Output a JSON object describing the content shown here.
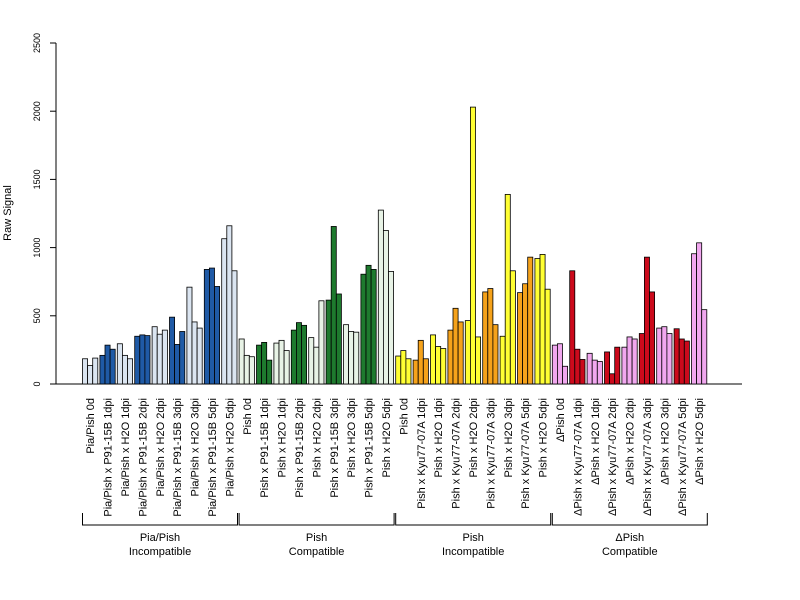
{
  "chart_data": {
    "type": "bar",
    "ylabel": "Raw Signal",
    "xlabel": "",
    "title": "",
    "ylim": [
      0,
      2500
    ],
    "yticks": [
      0,
      500,
      1000,
      1500,
      2000,
      2500
    ],
    "grid": false,
    "legend": "none",
    "categories": [
      {
        "label": "Pia/Pish 0d",
        "color": "#dbe5f1",
        "values": [
          185,
          135,
          190
        ]
      },
      {
        "label": "Pia/Pish x P91-15B 1dpi",
        "color": "#1f5aa6",
        "values": [
          210,
          285,
          255
        ]
      },
      {
        "label": "Pia/Pish x H2O 1dpi",
        "color": "#dbe5f1",
        "values": [
          295,
          210,
          185
        ]
      },
      {
        "label": "Pia/Pish x P91-15B 2dpi",
        "color": "#1f5aa6",
        "values": [
          350,
          360,
          355
        ]
      },
      {
        "label": "Pia/Pish x H2O 2dpi",
        "color": "#dbe5f1",
        "values": [
          420,
          365,
          395
        ]
      },
      {
        "label": "Pia/Pish x P91-15B 3dpi",
        "color": "#1f5aa6",
        "values": [
          490,
          290,
          385
        ]
      },
      {
        "label": "Pia/Pish x H2O 3dpi",
        "color": "#dbe5f1",
        "values": [
          710,
          455,
          410
        ]
      },
      {
        "label": "Pia/Pish x P91-15B 5dpi",
        "color": "#1f5aa6",
        "values": [
          840,
          850,
          715
        ]
      },
      {
        "label": "Pia/Pish x H2O 5dpi",
        "color": "#dbe5f1",
        "values": [
          1065,
          1160,
          830
        ]
      },
      {
        "label": "Pish 0d",
        "color": "#e8f3e6",
        "values": [
          330,
          210,
          200
        ]
      },
      {
        "label": "Pish x P91-15B 1dpi",
        "color": "#1e7a2e",
        "values": [
          285,
          305,
          175
        ]
      },
      {
        "label": "Pish x H2O 1dpi",
        "color": "#e8f3e6",
        "values": [
          300,
          320,
          245
        ]
      },
      {
        "label": "Pish x P91-15B 2dpi",
        "color": "#1e7a2e",
        "values": [
          395,
          450,
          430
        ]
      },
      {
        "label": "Pish x H2O 2dpi",
        "color": "#e8f3e6",
        "values": [
          340,
          270,
          610
        ]
      },
      {
        "label": "Pish x P91-15B 3dpi",
        "color": "#1e7a2e",
        "values": [
          615,
          1155,
          660
        ]
      },
      {
        "label": "Pish x H2O 3dpi",
        "color": "#e8f3e6",
        "values": [
          435,
          385,
          380
        ]
      },
      {
        "label": "Pish x P91-15B 5dpi",
        "color": "#1e7a2e",
        "values": [
          805,
          870,
          840
        ]
      },
      {
        "label": "Pish x H2O 5dpi",
        "color": "#e8f3e6",
        "values": [
          1275,
          1125,
          825
        ]
      },
      {
        "label": "Pish 0d",
        "color": "#ffff33",
        "values": [
          205,
          245,
          185
        ]
      },
      {
        "label": "Pish x Kyu77-07A 1dpi",
        "color": "#f5a21b",
        "values": [
          175,
          320,
          185
        ]
      },
      {
        "label": "Pish x H2O 1dpi",
        "color": "#ffff33",
        "values": [
          360,
          275,
          260
        ]
      },
      {
        "label": "Pish x Kyu77-07A 2dpi",
        "color": "#f5a21b",
        "values": [
          395,
          555,
          455
        ]
      },
      {
        "label": "Pish x H2O 2dpi",
        "color": "#ffff33",
        "values": [
          465,
          2030,
          345
        ]
      },
      {
        "label": "Pish x Kyu77-07A 3dpi",
        "color": "#f5a21b",
        "values": [
          675,
          700,
          435
        ]
      },
      {
        "label": "Pish x H2O 3dpi",
        "color": "#ffff33",
        "values": [
          350,
          1390,
          830
        ]
      },
      {
        "label": "Pish x Kyu77-07A 5dpi",
        "color": "#f5a21b",
        "values": [
          670,
          735,
          930
        ]
      },
      {
        "label": "Pish x H2O 5dpi",
        "color": "#ffff33",
        "values": [
          920,
          950,
          695
        ]
      },
      {
        "label": "ΔPish 0d",
        "color": "#f1a7ef",
        "values": [
          285,
          295,
          130
        ]
      },
      {
        "label": "ΔPish x Kyu77-07A 1dpi",
        "color": "#cc0a1c",
        "values": [
          830,
          255,
          180
        ]
      },
      {
        "label": "ΔPish x H2O 1dpi",
        "color": "#f1a7ef",
        "values": [
          225,
          175,
          165
        ]
      },
      {
        "label": "ΔPish x Kyu77-07A 2dpi",
        "color": "#cc0a1c",
        "values": [
          235,
          75,
          270
        ]
      },
      {
        "label": "ΔPish x H2O 2dpi",
        "color": "#f1a7ef",
        "values": [
          270,
          345,
          330
        ]
      },
      {
        "label": "ΔPish x Kyu77-07A 3dpi",
        "color": "#cc0a1c",
        "values": [
          370,
          930,
          675
        ]
      },
      {
        "label": "ΔPish x H2O 3dpi",
        "color": "#f1a7ef",
        "values": [
          410,
          420,
          370
        ]
      },
      {
        "label": "ΔPish x Kyu77-07A 5dpi",
        "color": "#cc0a1c",
        "values": [
          405,
          330,
          315
        ]
      },
      {
        "label": "ΔPish x H2O 5dpi",
        "color": "#f1a7ef",
        "values": [
          955,
          1035,
          545
        ]
      }
    ],
    "groups": [
      {
        "line1": "Pia/Pish",
        "line2": "Incompatible",
        "start": 0,
        "end": 8
      },
      {
        "line1": "Pish",
        "line2": "Compatible",
        "start": 9,
        "end": 17
      },
      {
        "line1": "Pish",
        "line2": "Incompatible",
        "start": 18,
        "end": 26
      },
      {
        "line1": "ΔPish",
        "line2": "Compatible",
        "start": 27,
        "end": 35
      }
    ]
  }
}
